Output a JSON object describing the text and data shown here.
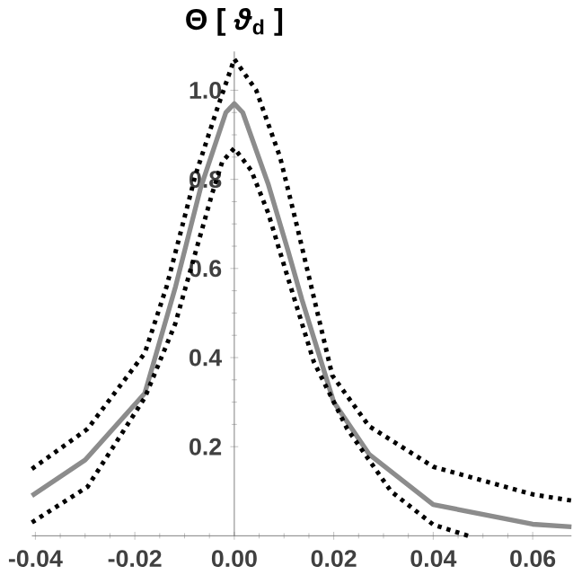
{
  "chart_data": {
    "type": "line",
    "ylabel": "Θ [ *ϑ*$_{d}$ ]",
    "xlim": [
      -0.0407,
      0.0678
    ],
    "ylim": [
      0,
      1.087
    ],
    "xticks": [
      -0.04,
      -0.02,
      {
        "value": 0,
        "label": "0.00"
      },
      0.02,
      0.04,
      0.06
    ],
    "yticks": [
      0.2,
      0.4,
      0.6,
      0.8,
      {
        "value": 1,
        "label": "1.0"
      }
    ],
    "grid": false,
    "marker": "none",
    "series": [
      {
        "color": "#8c8c8c",
        "line_style": "solid",
        "x": [
          -0.0407,
          -0.03,
          -0.018,
          -0.0118,
          -0.0068,
          -0.0017,
          0,
          0.0017,
          0.0068,
          0.0108,
          0.0136,
          0.02,
          0.0271,
          0.04,
          0.06,
          0.0678
        ],
        "values": [
          0.09,
          0.17,
          0.32,
          0.56,
          0.78,
          0.95,
          0.97,
          0.95,
          0.79,
          0.64,
          0.53,
          0.3,
          0.183,
          0.07,
          0.026,
          0.02
        ]
      },
      {
        "color": "#000000",
        "line_style": "dotted",
        "x": [
          -0.0407,
          -0.0295,
          -0.018,
          -0.0136,
          -0.0078,
          -0.0034,
          0,
          0.0044,
          0.0092,
          0.0125,
          0.0197,
          0.0271,
          0.04,
          0.06,
          0.0678
        ],
        "values": [
          0.15,
          0.24,
          0.41,
          0.56,
          0.81,
          0.96,
          1.07,
          1.0,
          0.85,
          0.7,
          0.36,
          0.246,
          0.155,
          0.093,
          0.079
        ]
      },
      {
        "color": "#000000",
        "line_style": "dotted",
        "x": [
          -0.0407,
          -0.0295,
          -0.018,
          -0.0119,
          -0.0044,
          -0.0024,
          0,
          0.0034,
          0.0068,
          0.0102,
          0.016,
          0.0227,
          0.0315,
          0.04,
          0.047
        ],
        "values": [
          0.03,
          0.11,
          0.31,
          0.475,
          0.77,
          0.84,
          0.87,
          0.82,
          0.725,
          0.6,
          0.39,
          0.24,
          0.1,
          0.025,
          0.0
        ]
      }
    ]
  }
}
